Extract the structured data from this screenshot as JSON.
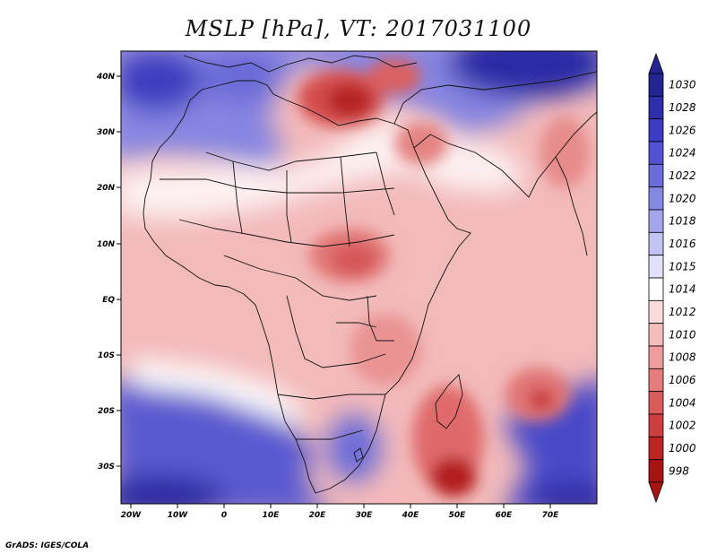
{
  "title": "MSLP [hPa], VT: 2017031100",
  "footer": "GrADS: IGES/COLA",
  "axes": {
    "lon_labels": [
      "20W",
      "10W",
      "0",
      "10E",
      "20E",
      "30E",
      "40E",
      "50E",
      "60E",
      "70E"
    ],
    "lat_labels": [
      "40N",
      "30N",
      "20N",
      "10N",
      "EQ",
      "10S",
      "20S",
      "30S"
    ]
  },
  "colorbar": {
    "levels": [
      "1030",
      "1028",
      "1026",
      "1024",
      "1022",
      "1020",
      "1018",
      "1016",
      "1015",
      "1014",
      "1012",
      "1010",
      "1008",
      "1006",
      "1004",
      "1002",
      "1000",
      "998"
    ],
    "colors": [
      "#232391",
      "#2e2eab",
      "#3d3dc4",
      "#5252d2",
      "#6b6bdc",
      "#8787e4",
      "#a5a5ec",
      "#c3c3f4",
      "#e1e1fa",
      "#ffffff",
      "#fbdcdc",
      "#f5bcbc",
      "#ee9c9c",
      "#e57d7d",
      "#da5d5d",
      "#cd3e3e",
      "#bf2323",
      "#a81414"
    ]
  },
  "chart_data": {
    "type": "heatmap",
    "title": "MSLP [hPa], VT: 2017031100",
    "variable": "MSLP",
    "units": "hPa",
    "valid_time": "2017031100",
    "lon_range": [
      -22,
      80
    ],
    "lat_range": [
      -37,
      45
    ],
    "colorbar_levels": [
      1030,
      1028,
      1026,
      1024,
      1022,
      1020,
      1018,
      1016,
      1015,
      1014,
      1012,
      1010,
      1008,
      1006,
      1004,
      1002,
      1000,
      998
    ]
  }
}
